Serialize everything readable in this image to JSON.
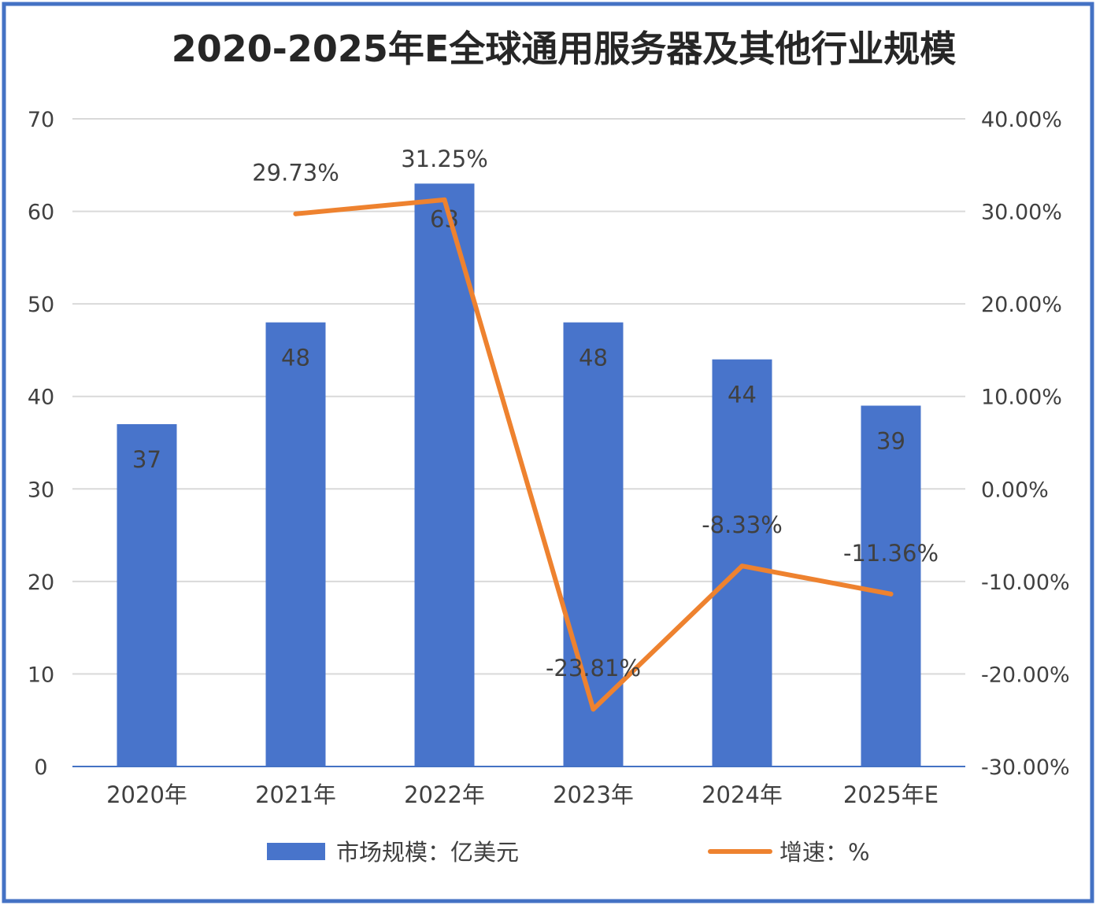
{
  "colors": {
    "bar": "#4874CB",
    "line": "#EE822F",
    "frame": "#4472C4",
    "grid": "#D9D9D9",
    "text": "#404040",
    "title": "#262626"
  },
  "chart_data": {
    "type": "bar",
    "title": "2020-2025年E全球通用服务器及其他行业规模",
    "categories": [
      "2020年",
      "2021年",
      "2022年",
      "2023年",
      "2024年",
      "2025年E"
    ],
    "series": [
      {
        "name": "市场规模：亿美元",
        "type": "bar",
        "axis": "left",
        "values": [
          37,
          48,
          63,
          48,
          44,
          39
        ],
        "labels": [
          "37",
          "48",
          "63",
          "48",
          "44",
          "39"
        ]
      },
      {
        "name": "增速：%",
        "type": "line",
        "axis": "right",
        "values": [
          null,
          29.73,
          31.25,
          -23.81,
          -8.33,
          -11.36
        ],
        "labels": [
          "",
          "29.73%",
          "31.25%",
          "-23.81%",
          "-8.33%",
          "-11.36%"
        ]
      }
    ],
    "y_left": {
      "min": 0,
      "max": 70,
      "ticks": [
        "0",
        "10",
        "20",
        "30",
        "40",
        "50",
        "60",
        "70"
      ]
    },
    "y_right": {
      "min": -30,
      "max": 40,
      "ticks": [
        "-30.00%",
        "-20.00%",
        "-10.00%",
        "0.00%",
        "10.00%",
        "20.00%",
        "30.00%",
        "40.00%"
      ]
    },
    "grid": true,
    "legend_position": "bottom"
  }
}
